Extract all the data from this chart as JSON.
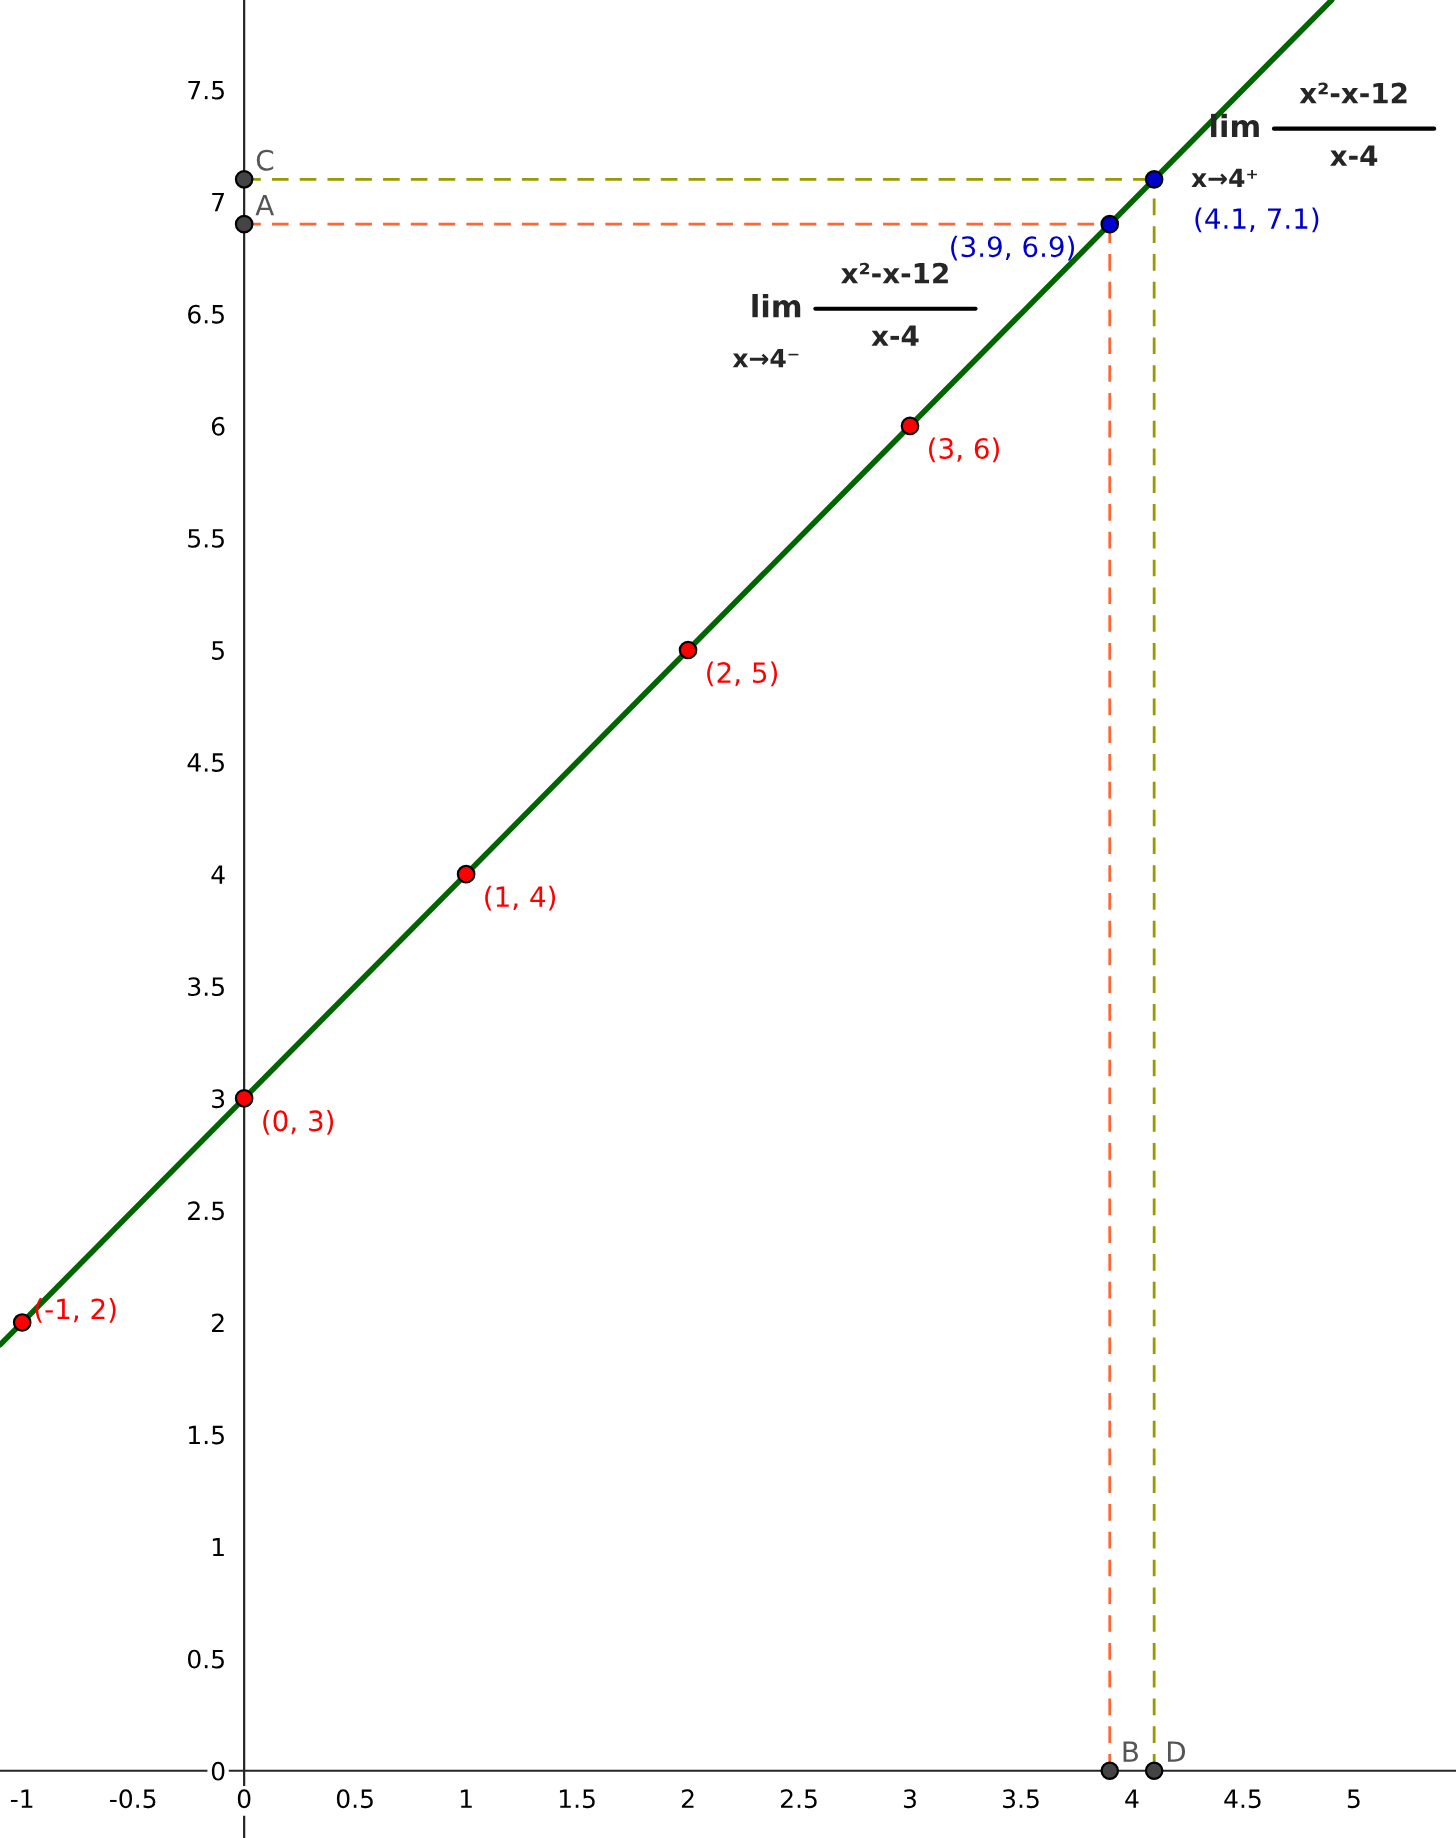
{
  "chart_data": {
    "type": "line",
    "xlim": [
      -1.1,
      5.46
    ],
    "ylim": [
      -0.3,
      7.9
    ],
    "xticks": [
      -1,
      -0.5,
      0,
      0.5,
      1,
      1.5,
      2,
      2.5,
      3,
      3.5,
      4,
      4.5,
      5
    ],
    "yticks": [
      0,
      0.5,
      1,
      1.5,
      2,
      2.5,
      3,
      3.5,
      4,
      4.5,
      5,
      5.5,
      6,
      6.5,
      7,
      7.5
    ],
    "grid": false,
    "series": [
      {
        "color": "#006400",
        "x": [
          -1.1,
          4.9
        ],
        "values": [
          1.9,
          7.9
        ],
        "line_style": "solid",
        "marker": "none"
      },
      {
        "type": "line",
        "color": "#ff6633",
        "x": [
          0,
          3.9
        ],
        "values": [
          6.9,
          6.9
        ],
        "line_style": "dashed",
        "marker": "none"
      },
      {
        "type": "line",
        "color": "#999900",
        "x": [
          0,
          4.1
        ],
        "values": [
          7.1,
          7.1
        ],
        "line_style": "dashed",
        "marker": "none"
      },
      {
        "type": "line",
        "color": "#ff6633",
        "x": [
          3.9,
          3.9
        ],
        "values": [
          0,
          6.9
        ],
        "line_style": "dashed",
        "marker": "none"
      },
      {
        "type": "line",
        "color": "#999900",
        "x": [
          4.1,
          4.1
        ],
        "values": [
          0,
          7.1
        ],
        "line_style": "dashed",
        "marker": "none"
      },
      {
        "type": "scatter",
        "color": "#ff0000",
        "x": [
          -1,
          0,
          1,
          2,
          3
        ],
        "values": [
          2,
          3,
          4,
          5,
          6
        ],
        "marker": "circle",
        "value_labels": [
          "(-1, 2)",
          "(0, 3)",
          "(1, 4)",
          "(2, 5)",
          "(3, 6)"
        ]
      },
      {
        "type": "scatter",
        "color": "#0000cc",
        "x": [
          3.9,
          4.1
        ],
        "values": [
          6.9,
          7.1
        ],
        "marker": "circle",
        "value_labels": [
          "(3.9, 6.9)",
          "(4.1, 7.1)"
        ]
      },
      {
        "type": "scatter",
        "color": "#444444",
        "x": [
          0,
          0,
          3.9,
          4.1
        ],
        "values": [
          6.9,
          7.1,
          0,
          0
        ],
        "marker": "circle",
        "value_labels": [
          "A",
          "C",
          "B",
          "D"
        ]
      }
    ],
    "annotations": [
      "lim",
      "x→4⁻",
      "x²-x-12",
      "x-4",
      "lim",
      "x→4⁺",
      "x²-x-12",
      "x-4"
    ]
  }
}
